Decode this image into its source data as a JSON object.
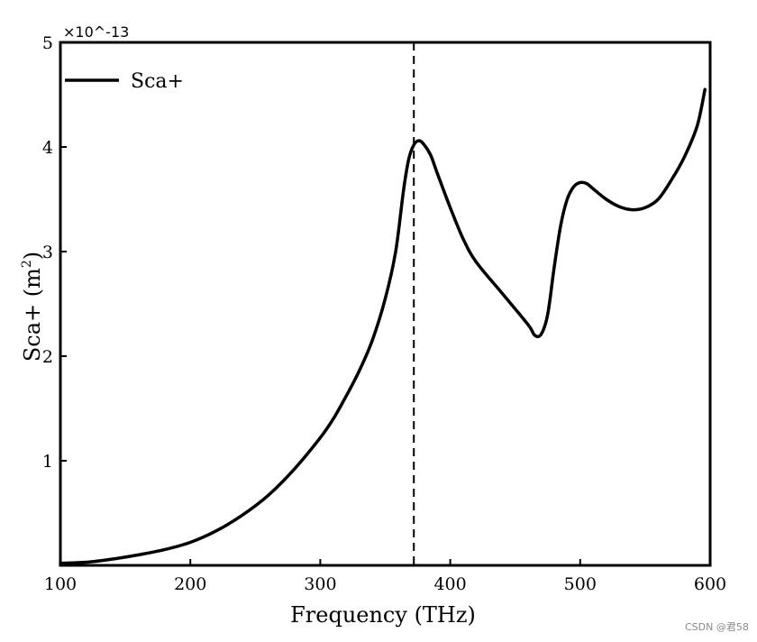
{
  "chart_data": {
    "type": "line",
    "title": "",
    "xlabel": "Frequency (THz)",
    "ylabel_main": "Sca+ (m",
    "ylabel_sup": "2",
    "ylabel_close": ")",
    "xlim": [
      100,
      600
    ],
    "ylim": [
      0,
      5
    ],
    "xticks": [
      100,
      200,
      300,
      400,
      500,
      600
    ],
    "xtick_labels": [
      "100",
      "200",
      "300",
      "400",
      "500",
      "600"
    ],
    "yticks": [
      1,
      2,
      3,
      4,
      5
    ],
    "ytick_labels": [
      "1",
      "2",
      "3",
      "4",
      "5"
    ],
    "y_exponent_label": "×10^-13",
    "grid": false,
    "legend_position": "top-left",
    "series": [
      {
        "name": "Sca+",
        "x": [
          100,
          120,
          140,
          160,
          180,
          200,
          220,
          240,
          260,
          280,
          300,
          310,
          320,
          330,
          340,
          350,
          358,
          364,
          368,
          372,
          376,
          380,
          385,
          390,
          400,
          410,
          420,
          440,
          460,
          465,
          470,
          475,
          480,
          485,
          490,
          495,
          500,
          505,
          510,
          520,
          530,
          540,
          550,
          560,
          570,
          580,
          590,
          596
        ],
        "values": [
          0.02,
          0.03,
          0.06,
          0.1,
          0.15,
          0.22,
          0.33,
          0.48,
          0.67,
          0.92,
          1.22,
          1.4,
          1.62,
          1.86,
          2.15,
          2.55,
          3.0,
          3.58,
          3.88,
          4.02,
          4.06,
          4.02,
          3.92,
          3.75,
          3.42,
          3.12,
          2.9,
          2.6,
          2.3,
          2.2,
          2.21,
          2.4,
          2.85,
          3.25,
          3.5,
          3.62,
          3.66,
          3.65,
          3.6,
          3.5,
          3.43,
          3.4,
          3.42,
          3.5,
          3.68,
          3.9,
          4.2,
          4.55
        ]
      }
    ],
    "vline": {
      "x": 372,
      "style": "dashed"
    }
  },
  "watermark": "CSDN @君58"
}
